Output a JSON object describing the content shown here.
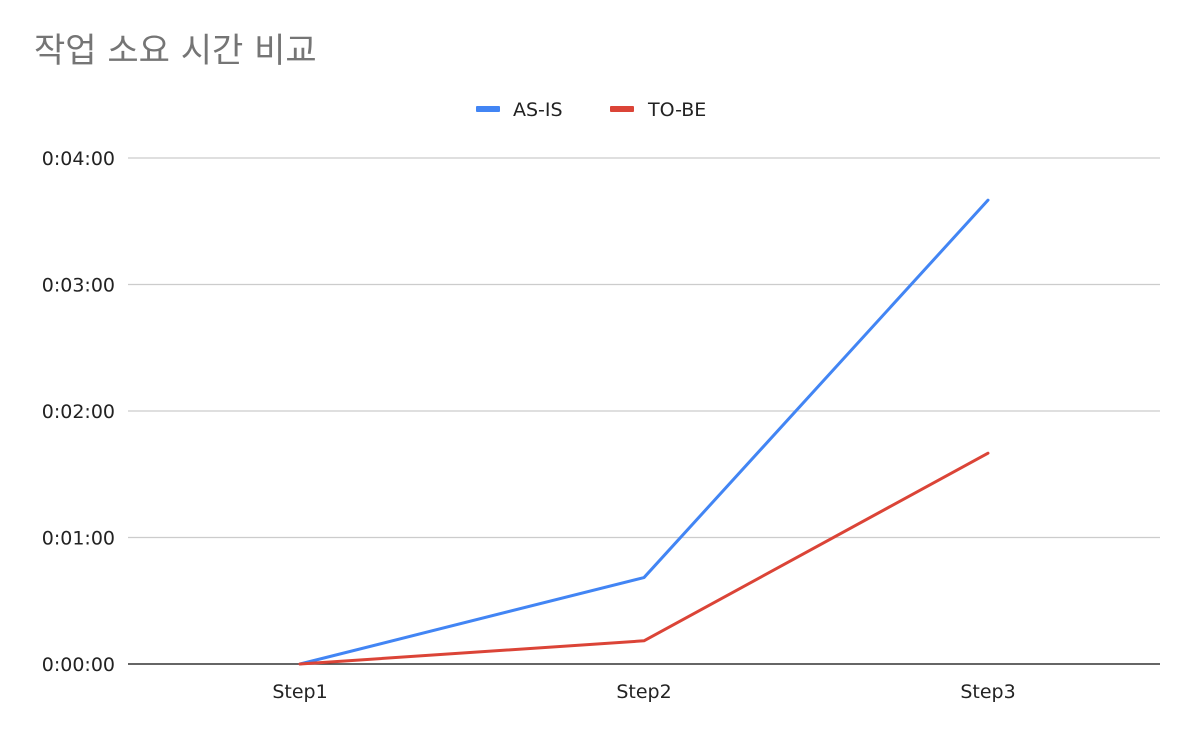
{
  "chart_data": {
    "type": "line",
    "title": "작업 소요 시간 비교",
    "xlabel": "",
    "ylabel": "",
    "categories": [
      "Step1",
      "Step2",
      "Step3"
    ],
    "y_unit": "seconds",
    "ylim": [
      0,
      240
    ],
    "y_ticks": [
      {
        "value": 0,
        "label": "0:00:00"
      },
      {
        "value": 60,
        "label": "0:01:00"
      },
      {
        "value": 120,
        "label": "0:02:00"
      },
      {
        "value": 180,
        "label": "0:03:00"
      },
      {
        "value": 240,
        "label": "0:04:00"
      }
    ],
    "grid": true,
    "legend_position": "top",
    "series": [
      {
        "name": "AS-IS",
        "color": "#4285f4",
        "values": [
          0,
          41,
          220
        ]
      },
      {
        "name": "TO-BE",
        "color": "#db4437",
        "values": [
          0,
          11,
          100
        ]
      }
    ]
  }
}
